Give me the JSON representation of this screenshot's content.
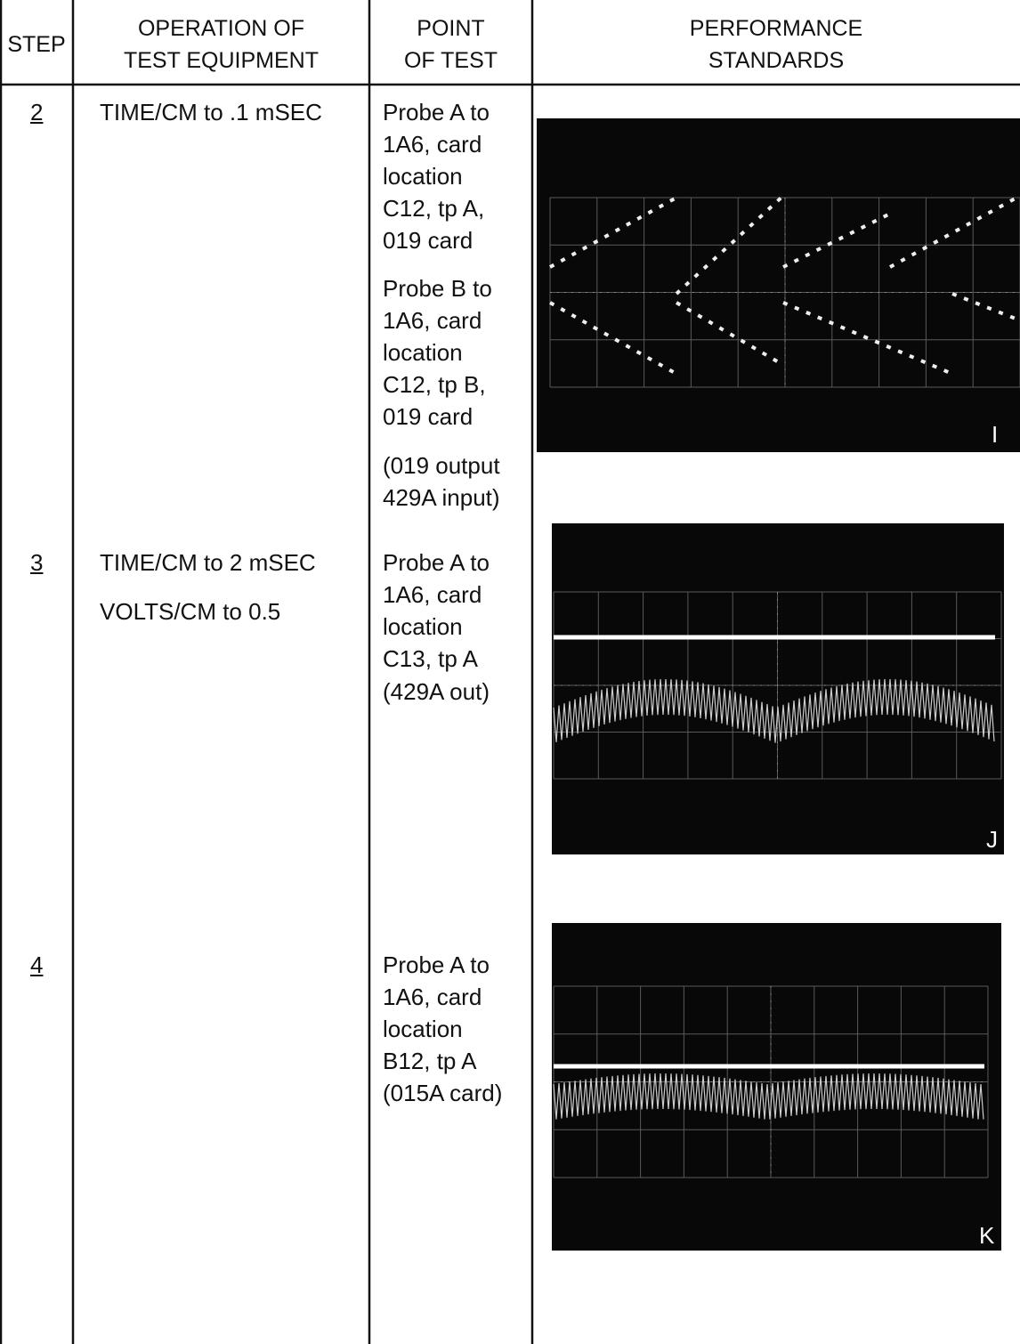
{
  "header": {
    "columns": [
      [
        "STEP"
      ],
      [
        "OPERATION OF",
        "TEST EQUIPMENT"
      ],
      [
        "POINT",
        "OF TEST"
      ],
      [
        "PERFORMANCE",
        "STANDARDS"
      ]
    ]
  },
  "rows": [
    {
      "step": "2",
      "operation": [
        [
          "TIME/CM to .1 mSEC"
        ]
      ],
      "point_of_test": [
        [
          "Probe A to",
          "1A6, card",
          "location",
          "C12, tp A,",
          "019 card"
        ],
        [
          "Probe B to",
          "1A6, card",
          "location",
          "C12, tp B,",
          "019 card"
        ],
        [
          "(019 output",
          "429A input)"
        ]
      ],
      "figure_label": "I"
    },
    {
      "step": "3",
      "operation": [
        [
          "TIME/CM to 2 mSEC"
        ],
        [
          "VOLTS/CM to 0.5"
        ]
      ],
      "point_of_test": [
        [
          "Probe A to",
          "1A6, card",
          "location",
          "C13, tp A"
        ],
        [
          "(429A out)"
        ]
      ],
      "figure_label": "J"
    },
    {
      "step": "4",
      "operation": [],
      "point_of_test": [
        [
          "Probe A to",
          "1A6, card",
          "location",
          "B12, tp A",
          "(015A card)"
        ]
      ],
      "figure_label": "K"
    }
  ]
}
